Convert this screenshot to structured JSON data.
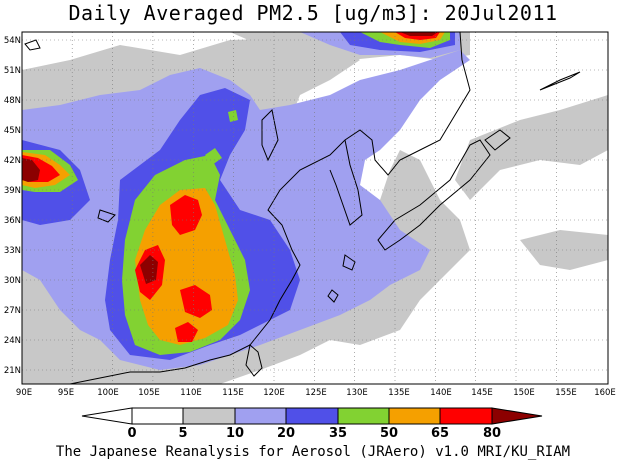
{
  "title": "Daily Averaged PM2.5 [ug/m3]: 20Jul2011",
  "footer": "The Japanese Reanalysis for Aerosol (JRAero) v1.0 MRI/KU_RIAM",
  "lat_labels": [
    "54N",
    "51N",
    "48N",
    "45N",
    "42N",
    "39N",
    "36N",
    "33N",
    "30N",
    "27N",
    "24N",
    "21N"
  ],
  "lon_labels": [
    "90E",
    "95E",
    "100E",
    "105E",
    "110E",
    "115E",
    "120E",
    "125E",
    "130E",
    "135E",
    "140E",
    "145E",
    "150E",
    "155E",
    "160E"
  ],
  "colorbar": {
    "levels": [
      "0",
      "5",
      "10",
      "20",
      "35",
      "50",
      "65",
      "80"
    ],
    "colors": [
      "#ffffff",
      "#c8c8c8",
      "#a0a0f0",
      "#5050e8",
      "#82d232",
      "#f5a000",
      "#ff0000",
      "#8c0000"
    ]
  },
  "chart_data": {
    "type": "heatmap",
    "title": "Daily Averaged PM2.5 [ug/m3]: 20Jul2011",
    "xlim": [
      "90E",
      "160E"
    ],
    "ylim": [
      "20N",
      "55N"
    ],
    "contour_levels": [
      0,
      5,
      10,
      20,
      35,
      50,
      65,
      80
    ],
    "grid": "dotted"
  }
}
